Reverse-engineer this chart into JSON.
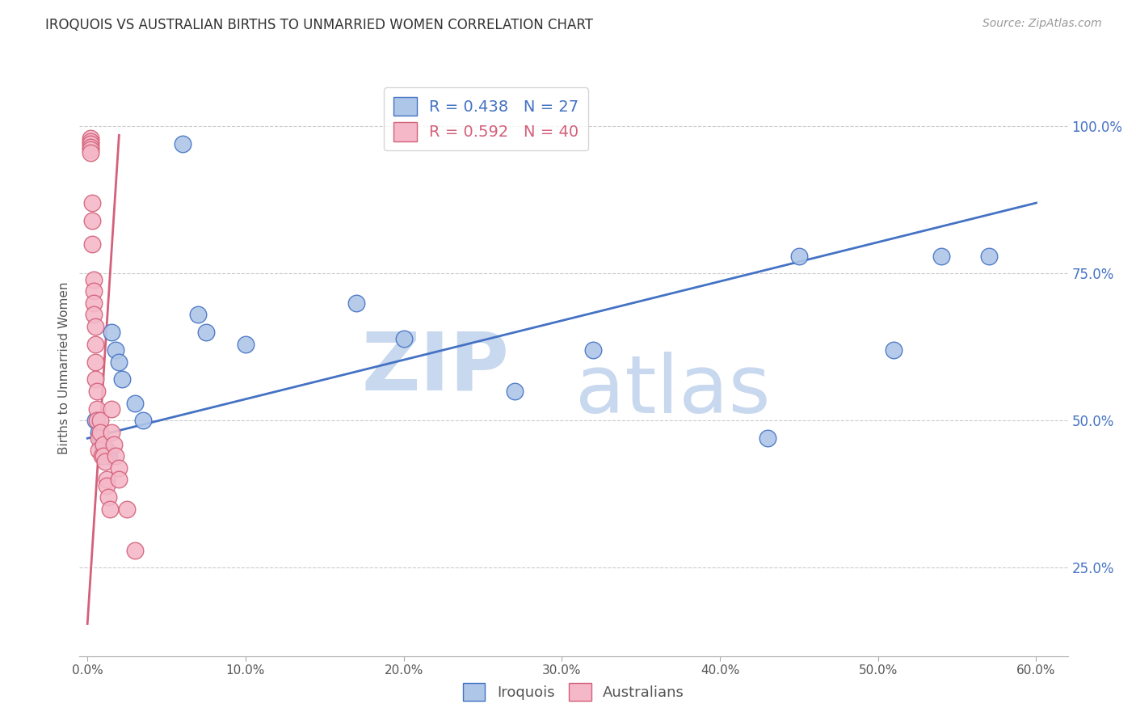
{
  "title": "IROQUOIS VS AUSTRALIAN BIRTHS TO UNMARRIED WOMEN CORRELATION CHART",
  "source": "Source: ZipAtlas.com",
  "ylabel": "Births to Unmarried Women",
  "x_ticks": [
    "0.0%",
    "10.0%",
    "20.0%",
    "30.0%",
    "40.0%",
    "50.0%",
    "60.0%"
  ],
  "x_tick_vals": [
    0.0,
    0.1,
    0.2,
    0.3,
    0.4,
    0.5,
    0.6
  ],
  "y_ticks_right": [
    "100.0%",
    "75.0%",
    "50.0%",
    "25.0%"
  ],
  "y_tick_vals_right": [
    1.0,
    0.75,
    0.5,
    0.25
  ],
  "xlim": [
    -0.005,
    0.62
  ],
  "ylim": [
    0.1,
    1.08
  ],
  "iroquois_R": 0.438,
  "iroquois_N": 27,
  "australians_R": 0.592,
  "australians_N": 40,
  "iroquois_color": "#aec6e8",
  "australians_color": "#f4b8c8",
  "line_iroquois_color": "#4472c4",
  "line_australians_color": "#d4607a",
  "iroquois_scatter_x": [
    0.005,
    0.007,
    0.008,
    0.009,
    0.01,
    0.011,
    0.012,
    0.013,
    0.015,
    0.018,
    0.02,
    0.022,
    0.03,
    0.035,
    0.06,
    0.07,
    0.075,
    0.1,
    0.17,
    0.2,
    0.27,
    0.32,
    0.43,
    0.45,
    0.51,
    0.54,
    0.57
  ],
  "iroquois_scatter_y": [
    0.5,
    0.48,
    0.47,
    0.46,
    0.46,
    0.45,
    0.45,
    0.44,
    0.65,
    0.62,
    0.6,
    0.57,
    0.53,
    0.5,
    0.97,
    0.68,
    0.65,
    0.63,
    0.7,
    0.64,
    0.55,
    0.62,
    0.47,
    0.78,
    0.62,
    0.78,
    0.78
  ],
  "australians_scatter_x": [
    0.002,
    0.002,
    0.002,
    0.002,
    0.002,
    0.002,
    0.003,
    0.003,
    0.003,
    0.004,
    0.004,
    0.004,
    0.004,
    0.005,
    0.005,
    0.005,
    0.005,
    0.006,
    0.006,
    0.006,
    0.007,
    0.007,
    0.008,
    0.008,
    0.009,
    0.01,
    0.01,
    0.011,
    0.012,
    0.012,
    0.013,
    0.014,
    0.015,
    0.015,
    0.017,
    0.018,
    0.02,
    0.02,
    0.025,
    0.03
  ],
  "australians_scatter_y": [
    0.98,
    0.975,
    0.97,
    0.965,
    0.96,
    0.955,
    0.87,
    0.84,
    0.8,
    0.74,
    0.72,
    0.7,
    0.68,
    0.66,
    0.63,
    0.6,
    0.57,
    0.55,
    0.52,
    0.5,
    0.47,
    0.45,
    0.5,
    0.48,
    0.44,
    0.46,
    0.44,
    0.43,
    0.4,
    0.39,
    0.37,
    0.35,
    0.52,
    0.48,
    0.46,
    0.44,
    0.42,
    0.4,
    0.35,
    0.28
  ],
  "iroquois_line_x": [
    0.0,
    0.6
  ],
  "iroquois_line_y": [
    0.47,
    0.87
  ],
  "australians_line_x": [
    0.0,
    0.02
  ],
  "australians_line_y": [
    0.155,
    0.985
  ],
  "watermark_zip_color": "#c8d8ee",
  "watermark_atlas_color": "#c8d8ee",
  "background_color": "#ffffff",
  "grid_color": "#cccccc",
  "grid_linestyle": "--"
}
